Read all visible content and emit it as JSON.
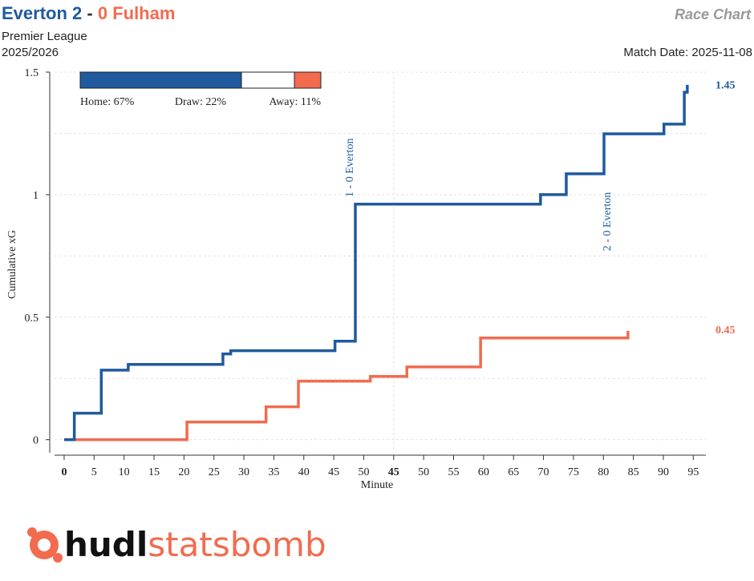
{
  "header": {
    "title_parts": [
      "Everton 2",
      "-",
      "0 Fulham"
    ],
    "competition": "Premier League",
    "season": "2025/2026",
    "chart_name": "Race Chart",
    "match_date": "Match Date: 2025-11-08"
  },
  "win_probability": {
    "labels": [
      "Home: 67%",
      "Draw: 22%",
      "Away: 11%"
    ],
    "values": [
      67,
      22,
      11
    ],
    "colors": [
      "#1f5a9e",
      "#ffffff",
      "#f26b4f"
    ]
  },
  "chart_data": {
    "type": "step",
    "x_label": "Minute",
    "y_label": "Cumulative xG",
    "xlim": [
      -1.6,
      107.1
    ],
    "ylim": [
      -0.06,
      1.5
    ],
    "xticks": [
      0,
      5,
      10,
      15,
      20,
      25,
      30,
      35,
      40,
      45,
      50,
      {
        "value": 55,
        "label": "45"
      },
      {
        "value": 60,
        "label": "50"
      },
      {
        "value": 65,
        "label": "55"
      },
      {
        "value": 70,
        "label": "60"
      },
      {
        "value": 75,
        "label": "65"
      },
      {
        "value": 80,
        "label": "70"
      },
      {
        "value": 85,
        "label": "75"
      },
      {
        "value": 90,
        "label": "80"
      },
      {
        "value": 95,
        "label": "85"
      },
      {
        "value": 100,
        "label": "90"
      },
      {
        "value": 105,
        "label": "95"
      }
    ],
    "yticks": [
      0,
      0.5,
      1,
      1.5
    ],
    "minor_yticks": [
      0.25,
      0.75,
      1.25
    ],
    "xgrid": [
      55
    ],
    "series": [
      {
        "name": "Everton",
        "color": "#1f5a9e",
        "total": 1.45,
        "x": [
          0,
          1.7,
          6.2,
          10.7,
          26.5,
          27.8,
          45.2,
          48.6,
          79.5,
          83.8,
          90.1,
          100.1,
          103.5,
          104.0
        ],
        "values": [
          0,
          0.108,
          0.284,
          0.307,
          0.35,
          0.363,
          0.402,
          0.961,
          1.0,
          1.085,
          1.248,
          1.288,
          1.418,
          1.448
        ]
      },
      {
        "name": "Fulham",
        "color": "#f26b4f",
        "total": 0.45,
        "x": [
          0,
          20.5,
          33.7,
          39.1,
          51.1,
          57.2,
          69.5,
          94.1
        ],
        "values": [
          0,
          0.072,
          0.134,
          0.239,
          0.258,
          0.297,
          0.415,
          0.444
        ]
      }
    ],
    "annotations": [
      {
        "text": "1 - 0 Everton",
        "x": 48.2,
        "y": 0.99,
        "color": "#1f5a9e"
      },
      {
        "text": "2 - 0 Everton",
        "x": 91.2,
        "y": 0.77,
        "color": "#1f5a9e"
      }
    ]
  },
  "logo": {
    "part1": "hudl",
    "part2": "statsbomb"
  }
}
